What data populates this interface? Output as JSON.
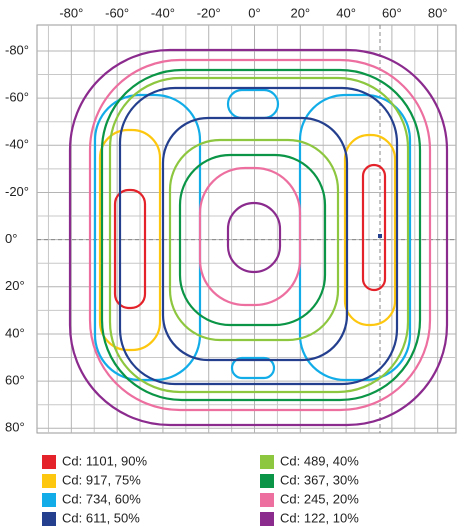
{
  "chart_data": {
    "type": "contour",
    "xlim": [
      -95,
      88
    ],
    "ylim": [
      -91,
      82
    ],
    "xticks": [
      {
        "value": -80,
        "label": "-80°"
      },
      {
        "value": -60,
        "label": "-60°"
      },
      {
        "value": -40,
        "label": "-40°"
      },
      {
        "value": -20,
        "label": "-20°"
      },
      {
        "value": 0,
        "label": "0°"
      },
      {
        "value": 20,
        "label": "20°"
      },
      {
        "value": 40,
        "label": "40°"
      },
      {
        "value": 60,
        "label": "60°"
      },
      {
        "value": 80,
        "label": "80°"
      }
    ],
    "yticks": [
      {
        "value": -80,
        "label": "-80°"
      },
      {
        "value": -60,
        "label": "-60°"
      },
      {
        "value": -40,
        "label": "-40°"
      },
      {
        "value": -20,
        "label": "-20°"
      },
      {
        "value": 0,
        "label": "0°"
      },
      {
        "value": 20,
        "label": "20°"
      },
      {
        "value": 40,
        "label": "40°"
      },
      {
        "value": 60,
        "label": "60°"
      },
      {
        "value": 80,
        "label": "80°"
      }
    ],
    "grid": true,
    "series": [
      {
        "name": "Cd: 1101, 90%",
        "color": "#e32229"
      },
      {
        "name": "Cd: 917, 75%",
        "color": "#fdc70f"
      },
      {
        "name": "Cd: 734, 60%",
        "color": "#12ade8"
      },
      {
        "name": "Cd: 611, 50%",
        "color": "#233f8e"
      },
      {
        "name": "Cd: 489, 40%",
        "color": "#8dc63f"
      },
      {
        "name": "Cd: 367, 30%",
        "color": "#0b9546"
      },
      {
        "name": "Cd: 245, 20%",
        "color": "#ec6fa0"
      },
      {
        "name": "Cd: 122, 10%",
        "color": "#8b2b8e"
      }
    ]
  }
}
